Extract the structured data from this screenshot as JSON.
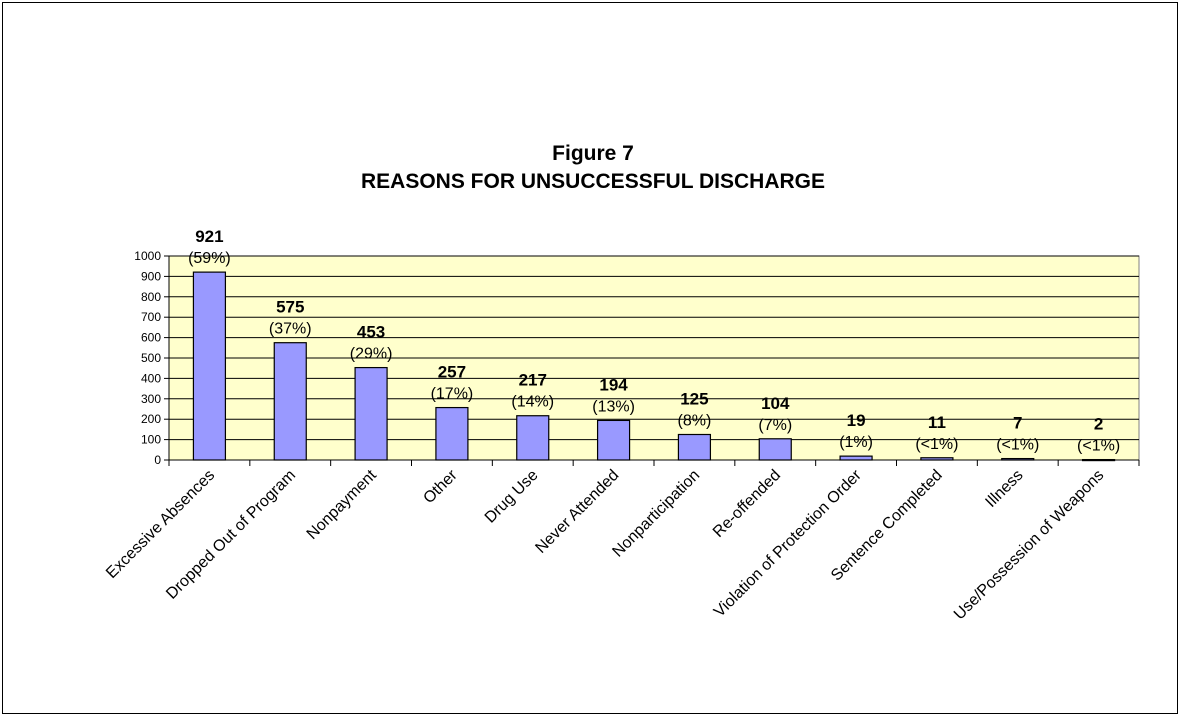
{
  "chart_data": {
    "type": "bar",
    "title_line1": "Figure 7",
    "title_line2": "REASONS FOR UNSUCCESSFUL DISCHARGE",
    "categories": [
      "Excessive Absences",
      "Dropped Out of Program",
      "Nonpayment",
      "Other",
      "Drug Use",
      "Never Attended",
      "Nonparticipation",
      "Re-offended",
      "Violation of Protection Order",
      "Sentence Completed",
      "Illness",
      "Use/Possession of Weapons"
    ],
    "values": [
      921,
      575,
      453,
      257,
      217,
      194,
      125,
      104,
      19,
      11,
      7,
      2
    ],
    "percent_labels": [
      "(59%)",
      "(37%)",
      "(29%)",
      "(17%)",
      "(14%)",
      "(13%)",
      "(8%)",
      "(7%)",
      "(1%)",
      "(<1%)",
      "(<1%)",
      "(<1%)"
    ],
    "xlabel": "",
    "ylabel": "",
    "ylim": [
      0,
      1000
    ],
    "yticks": [
      0,
      100,
      200,
      300,
      400,
      500,
      600,
      700,
      800,
      900,
      1000
    ],
    "grid": true,
    "legend": "none",
    "colors": {
      "bar_fill": "#9999FF",
      "bar_stroke": "#000000",
      "plot_background": "#FFFFCC",
      "gridline": "#000000"
    }
  }
}
